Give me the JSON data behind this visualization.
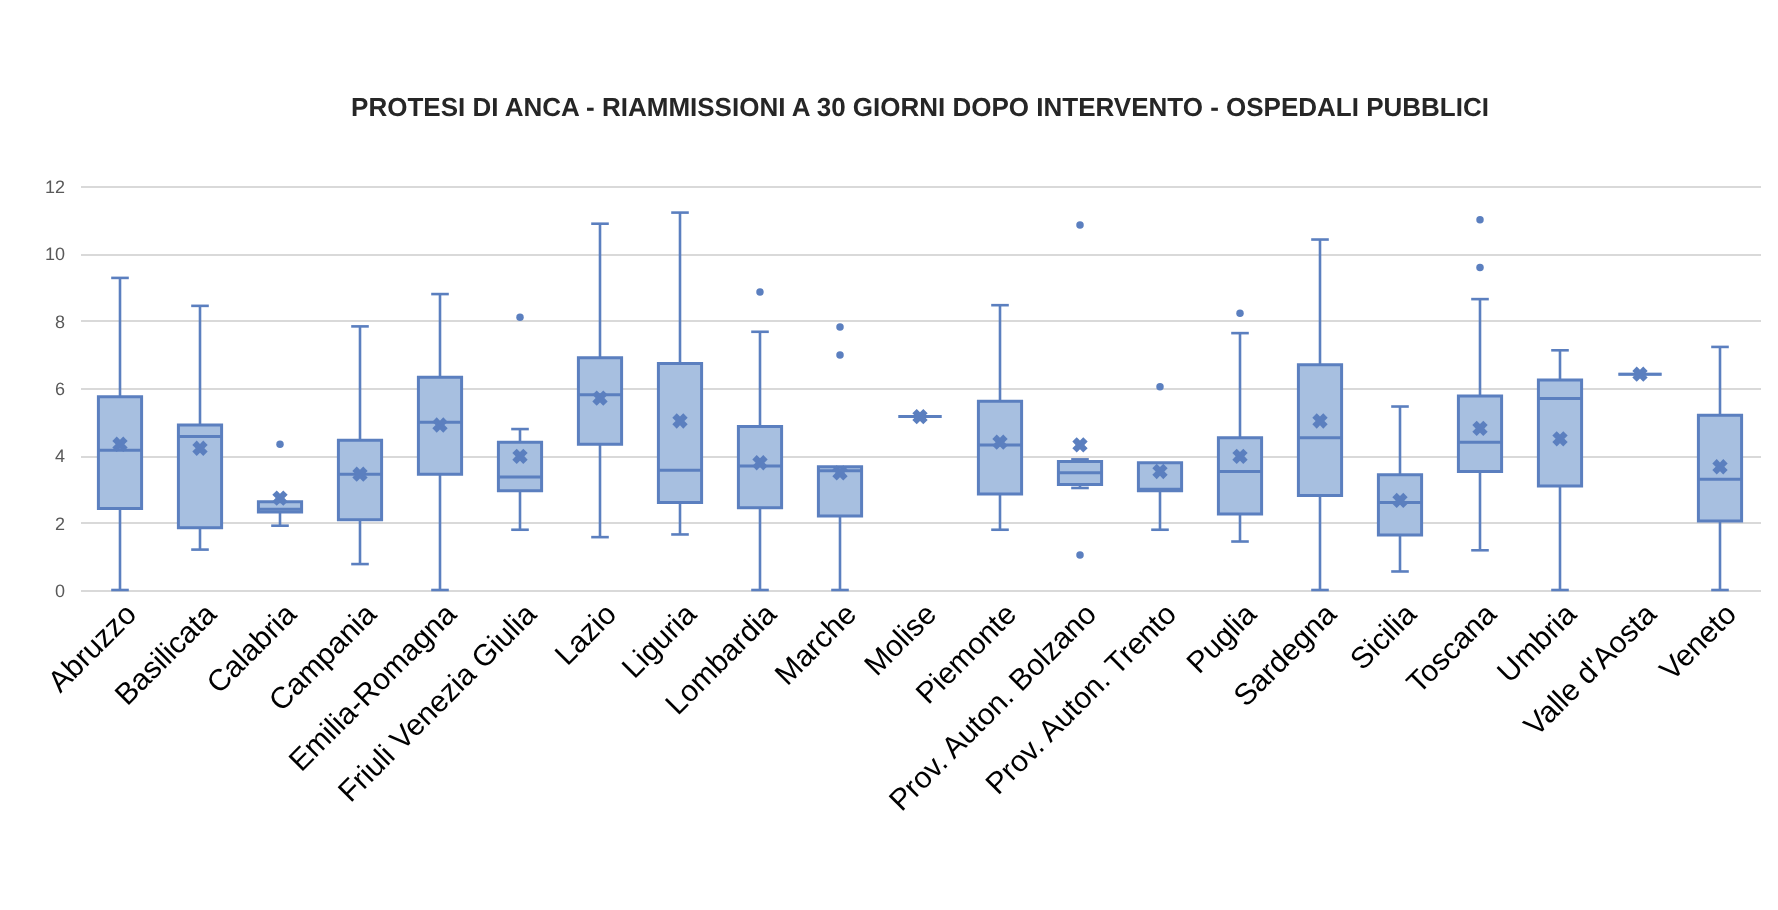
{
  "chart_data": {
    "type": "box",
    "title": "PROTESI DI ANCA - RIAMMISSIONI A 30 GIORNI DOPO INTERVENTO - OSPEDALI PUBBLICI",
    "categories": [
      "Abruzzo",
      "Basilicata",
      "Calabria",
      "Campania",
      "Emilia-Romagna",
      "Friuli Venezia Giulia",
      "Lazio",
      "Liguria",
      "Lombardia",
      "Marche",
      "Molise",
      "Piemonte",
      "Prov. Auton. Bolzano",
      "Prov. Auton. Trento",
      "Puglia",
      "Sardegna",
      "Sicilia",
      "Toscana",
      "Umbria",
      "Valle d'Aosta",
      "Veneto"
    ],
    "color": "#a7bfe0",
    "boxes": [
      {
        "low": 0,
        "q1": 2.42,
        "median": 4.15,
        "q3": 5.74,
        "high": 9.27,
        "mean": 4.33
      },
      {
        "low": 1.2,
        "q1": 1.85,
        "median": 4.56,
        "q3": 4.9,
        "high": 8.44,
        "mean": 4.21
      },
      {
        "low": 1.91,
        "q1": 2.32,
        "median": 2.4,
        "q3": 2.62,
        "high": 2.62,
        "mean": 2.73,
        "outliers": [
          4.33
        ]
      },
      {
        "low": 0.77,
        "q1": 2.09,
        "median": 3.44,
        "q3": 4.45,
        "high": 7.83,
        "mean": 3.44
      },
      {
        "low": 0,
        "q1": 3.44,
        "median": 4.98,
        "q3": 6.32,
        "high": 8.79,
        "mean": 4.9
      },
      {
        "low": 1.79,
        "q1": 2.95,
        "median": 3.36,
        "q3": 4.39,
        "high": 4.78,
        "mean": 3.97,
        "outliers": [
          8.1
        ]
      },
      {
        "low": 1.57,
        "q1": 4.33,
        "median": 5.8,
        "q3": 6.9,
        "high": 10.88,
        "mean": 5.7
      },
      {
        "low": 1.65,
        "q1": 2.6,
        "median": 3.56,
        "q3": 6.73,
        "high": 11.21,
        "mean": 5.02
      },
      {
        "low": 0,
        "q1": 2.44,
        "median": 3.68,
        "q3": 4.86,
        "high": 7.67,
        "mean": 3.78,
        "outliers": [
          8.85
        ]
      },
      {
        "low": 0,
        "q1": 2.2,
        "median": 3.54,
        "q3": 3.66,
        "high": 3.66,
        "mean": 3.48,
        "outliers": [
          7.81,
          6.98
        ]
      },
      {
        "low": 5.15,
        "q1": 5.15,
        "median": 5.15,
        "q3": 5.15,
        "high": 5.15,
        "mean": 5.15
      },
      {
        "low": 1.79,
        "q1": 2.85,
        "median": 4.31,
        "q3": 5.61,
        "high": 8.46,
        "mean": 4.39
      },
      {
        "low": 3.03,
        "q1": 3.13,
        "median": 3.48,
        "q3": 3.82,
        "high": 3.88,
        "mean": 4.31,
        "outliers": [
          10.84,
          1.04
        ]
      },
      {
        "low": 1.79,
        "q1": 2.95,
        "median": 2.99,
        "q3": 3.78,
        "high": 3.78,
        "mean": 3.52,
        "outliers": [
          6.04
        ]
      },
      {
        "low": 1.44,
        "q1": 2.26,
        "median": 3.52,
        "q3": 4.52,
        "high": 7.63,
        "mean": 3.97,
        "outliers": [
          8.22
        ]
      },
      {
        "low": 0,
        "q1": 2.81,
        "median": 4.52,
        "q3": 6.69,
        "high": 10.41,
        "mean": 5.02
      },
      {
        "low": 0.55,
        "q1": 1.63,
        "median": 2.6,
        "q3": 3.42,
        "high": 5.45,
        "mean": 2.66
      },
      {
        "low": 1.18,
        "q1": 3.52,
        "median": 4.39,
        "q3": 5.76,
        "high": 8.64,
        "mean": 4.8,
        "outliers": [
          11.0,
          9.58
        ]
      },
      {
        "low": 0,
        "q1": 3.09,
        "median": 5.69,
        "q3": 6.24,
        "high": 7.12,
        "mean": 4.49
      },
      {
        "low": 6.41,
        "q1": 6.41,
        "median": 6.41,
        "q3": 6.41,
        "high": 6.41,
        "mean": 6.41
      },
      {
        "low": 0,
        "q1": 2.05,
        "median": 3.29,
        "q3": 5.19,
        "high": 7.22,
        "mean": 3.66
      }
    ],
    "ylim": [
      0,
      12
    ],
    "yticks": [
      0,
      2,
      4,
      6,
      8,
      10,
      12
    ],
    "grid": "y"
  }
}
